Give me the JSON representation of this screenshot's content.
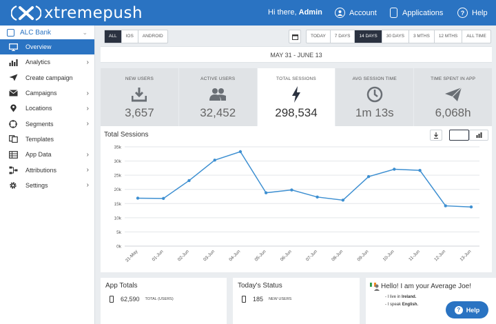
{
  "header": {
    "logo_text": "xtremepush",
    "greeting_prefix": "Hi there,",
    "user": "Admin",
    "account_label": "Account",
    "applications_label": "Applications",
    "help_label": "Help"
  },
  "sidebar": {
    "bank": "ALC Bank",
    "items": [
      {
        "label": "Overview",
        "icon": "monitor-icon",
        "arrow": false
      },
      {
        "label": "Analytics",
        "icon": "bar-chart-icon",
        "arrow": true
      },
      {
        "label": "Create campaign",
        "icon": "send-icon",
        "arrow": false
      },
      {
        "label": "Campaigns",
        "icon": "envelope-icon",
        "arrow": true
      },
      {
        "label": "Locations",
        "icon": "location-pin-icon",
        "arrow": true
      },
      {
        "label": "Segments",
        "icon": "target-icon",
        "arrow": true
      },
      {
        "label": "Templates",
        "icon": "templates-icon",
        "arrow": false
      },
      {
        "label": "App Data",
        "icon": "database-icon",
        "arrow": true
      },
      {
        "label": "Attributions",
        "icon": "network-icon",
        "arrow": true
      },
      {
        "label": "Settings",
        "icon": "gear-icon",
        "arrow": true
      }
    ]
  },
  "filters": {
    "platforms": [
      "ALL",
      "IOS",
      "ANDROID"
    ],
    "platform_selected": "ALL",
    "timeframes": [
      "TODAY",
      "7 DAYS",
      "14 DAYS",
      "30 DAYS",
      "3 MTHS",
      "12 MTHS",
      "ALL TIME"
    ],
    "timeframe_selected": "14 DAYS"
  },
  "date_range": "MAY 31 - JUNE 13",
  "kpis": [
    {
      "label": "NEW USERS",
      "value": "3,657",
      "icon": "download-icon"
    },
    {
      "label": "ACTIVE USERS",
      "value": "32,452",
      "icon": "users-icon"
    },
    {
      "label": "TOTAL SESSIONS",
      "value": "298,534",
      "icon": "lightning-icon"
    },
    {
      "label": "AVG SESSION TIME",
      "value": "1m 13s",
      "icon": "clock-icon"
    },
    {
      "label": "TIME SPENT IN APP",
      "value": "6,068h",
      "icon": "paper-plane-icon"
    }
  ],
  "kpi_active_index": 2,
  "chart_data": {
    "type": "line",
    "title": "Total Sessions",
    "categories": [
      "31-May",
      "01-Jun",
      "02-Jun",
      "03-Jun",
      "04-Jun",
      "05-Jun",
      "06-Jun",
      "07-Jun",
      "08-Jun",
      "09-Jun",
      "10-Jun",
      "11-Jun",
      "12-Jun",
      "13-Jun"
    ],
    "values": [
      16900,
      16800,
      23100,
      30300,
      33300,
      18800,
      19800,
      17300,
      16200,
      24500,
      27100,
      26700,
      14200,
      13800
    ],
    "y_ticks": [
      "0k",
      "5k",
      "10k",
      "15k",
      "20k",
      "25k",
      "30k",
      "35k"
    ],
    "ylim": [
      0,
      35000
    ],
    "grid": true,
    "color": "#3d8fd1"
  },
  "app_totals": {
    "title": "App Totals",
    "value": "62,590",
    "label": "TOTAL (USERS)"
  },
  "todays_status": {
    "title": "Today's Status",
    "value": "185",
    "label": "NEW USERS"
  },
  "average_joe": {
    "title": "Hello! I am your Average Joe!",
    "line1_prefix": "- I live in",
    "line1_value": "Ireland.",
    "line2_prefix": "- I speak",
    "line2_value": "English."
  },
  "help_button": "Help"
}
